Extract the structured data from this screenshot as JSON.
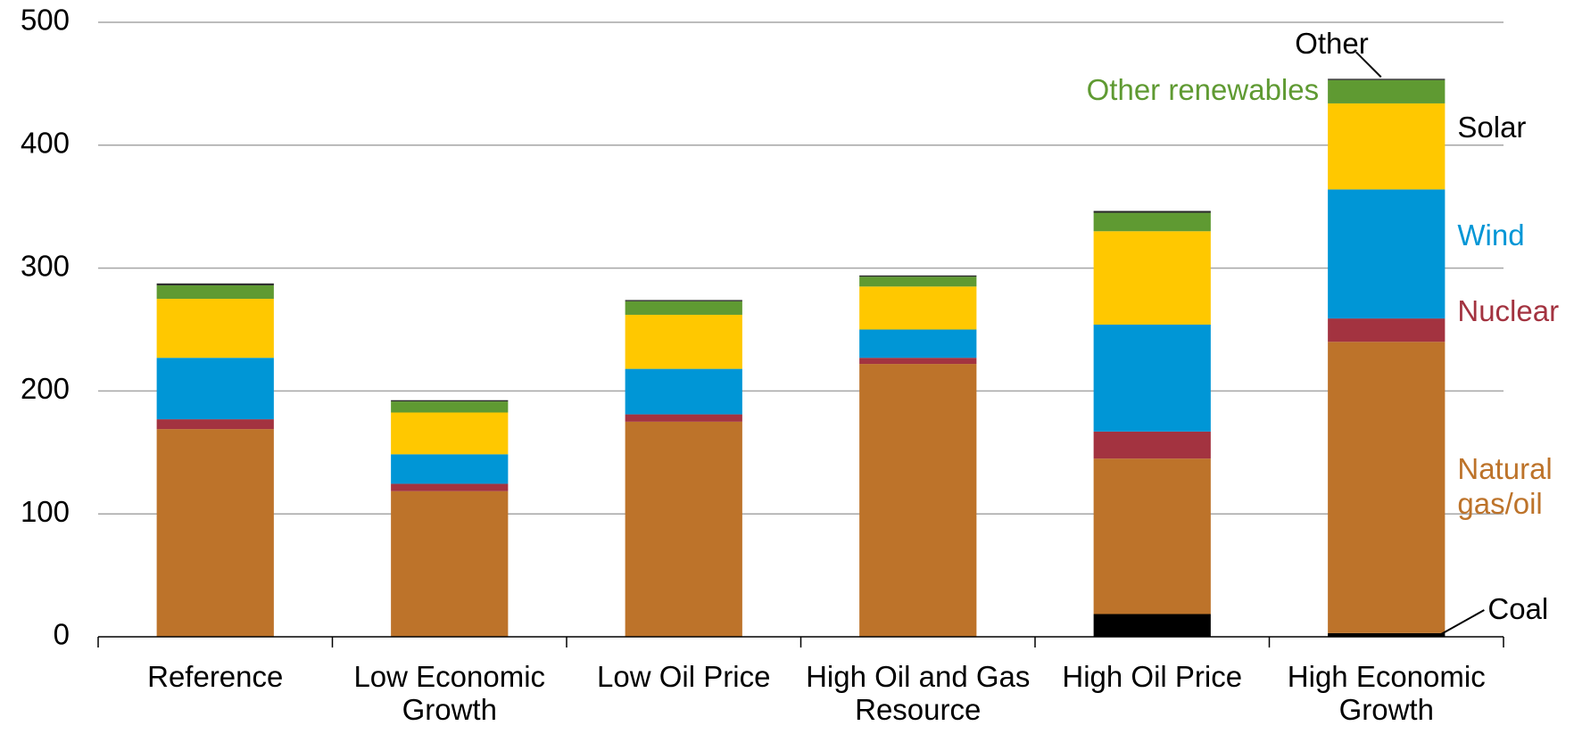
{
  "chart_data": {
    "type": "stacked_bar",
    "categories": [
      "Reference",
      "Low Economic Growth",
      "Low Oil Price",
      "High Oil and Gas Resource",
      "High Oil Price",
      "High Economic Growth"
    ],
    "ylim": [
      0,
      500
    ],
    "yticks": [
      0,
      100,
      200,
      300,
      400,
      500
    ],
    "grid": true,
    "legend": "right",
    "series": [
      {
        "name": "Coal",
        "color": "#000000",
        "label_color": "#000000",
        "values": [
          0,
          0,
          0,
          0,
          18.5,
          3
        ]
      },
      {
        "name": "Natural gas/oil",
        "color": "#bd732a",
        "label_color": "#bd732a",
        "values": [
          169,
          118.5,
          175,
          222,
          126.5,
          237
        ]
      },
      {
        "name": "Nuclear",
        "color": "#a33340",
        "label_color": "#a33340",
        "values": [
          8,
          6,
          6,
          5,
          22,
          19
        ]
      },
      {
        "name": "Wind",
        "color": "#0096d6",
        "label_color": "#0096d6",
        "values": [
          50,
          24,
          37,
          23,
          87,
          105
        ]
      },
      {
        "name": "Solar",
        "color": "#ffc800",
        "label_color": "#000000",
        "values": [
          48,
          34,
          44,
          35,
          76,
          70
        ]
      },
      {
        "name": "Other renewables",
        "color": "#5f9a32",
        "label_color": "#5f9a32",
        "values": [
          11,
          9,
          11,
          8,
          15,
          19
        ]
      },
      {
        "name": "Other",
        "color": "#262626",
        "label_color": "#000000",
        "values": [
          1.5,
          1,
          1,
          1,
          1.5,
          1
        ]
      }
    ]
  }
}
